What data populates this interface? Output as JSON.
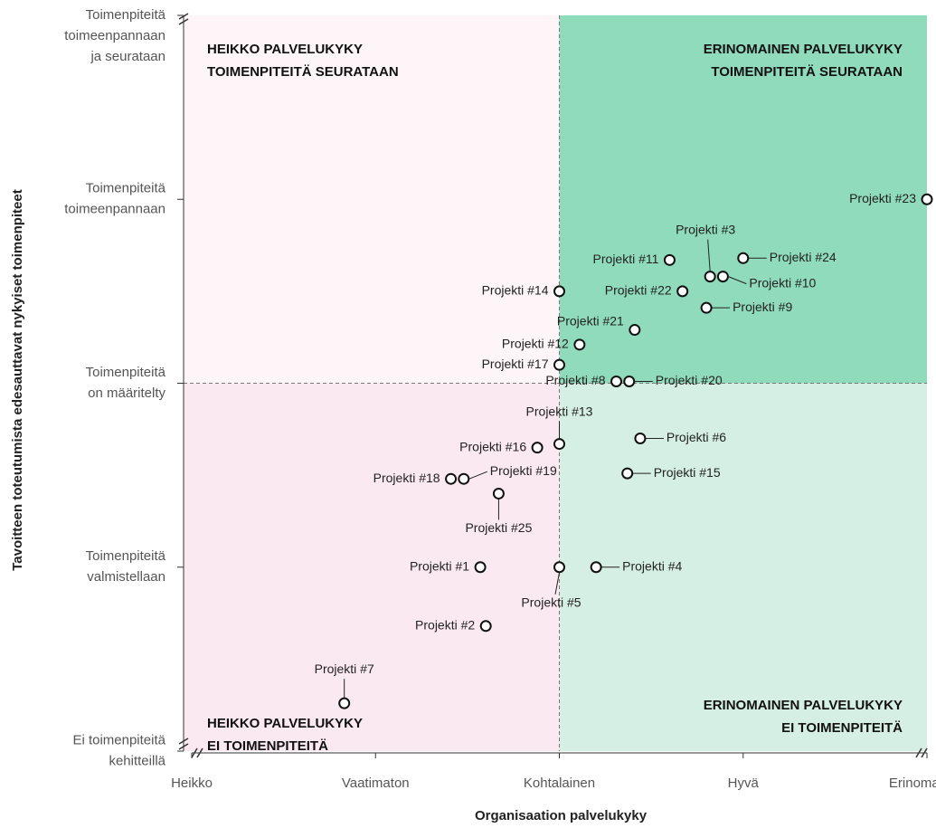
{
  "chart_data": {
    "type": "scatter",
    "x_label": "Organisaation palvelukyky",
    "y_label": "Tavoitteen toteutumista edesauttavat nykyiset toimenpiteet",
    "xlim": [
      0,
      4
    ],
    "ylim": [
      0,
      4
    ],
    "xticks": [
      {
        "value": 0,
        "label": "Heikko"
      },
      {
        "value": 1,
        "label": "Vaatimaton"
      },
      {
        "value": 2,
        "label": "Kohtalainen"
      },
      {
        "value": 3,
        "label": "Hyvä"
      },
      {
        "value": 4,
        "label": "Erinomainen"
      }
    ],
    "yticks": [
      {
        "value": 0,
        "label": [
          "Ei toimenpiteitä",
          "kehitteillä"
        ]
      },
      {
        "value": 1,
        "label": [
          "Toimenpiteitä",
          "valmistellaan"
        ]
      },
      {
        "value": 2,
        "label": [
          "Toimenpiteitä",
          "on määritelty"
        ]
      },
      {
        "value": 3,
        "label": [
          "Toimenpiteitä",
          "toimeenpannaan"
        ]
      },
      {
        "value": 4,
        "label": [
          "Toimenpiteitä",
          "toimeenpannaan",
          "ja seurataan"
        ]
      }
    ],
    "quadrants": {
      "top_left": [
        "HEIKKO PALVELUKYKY",
        "TOIMENPITEITÄ SEURATAAN"
      ],
      "top_right": [
        "ERINOMAINEN PALVELUKYKY",
        "TOIMENPITEITÄ SEURATAAN"
      ],
      "bottom_left": [
        "HEIKKO PALVELUKYKY",
        "EI TOIMENPITEITÄ"
      ],
      "bottom_right": [
        "ERINOMAINEN PALVELUKYKY",
        "EI TOIMENPITEITÄ"
      ]
    },
    "colors": {
      "top_left": "#fdf5f8",
      "bottom_left": "#fbe9f2",
      "top_right": "#8fdbbb",
      "bottom_right": "#d5efe4"
    },
    "points": [
      {
        "name": "Projekti #1",
        "x": 1.57,
        "y": 1.0
      },
      {
        "name": "Projekti #2",
        "x": 1.6,
        "y": 0.68
      },
      {
        "name": "Projekti #3",
        "x": 2.82,
        "y": 2.58
      },
      {
        "name": "Projekti #4",
        "x": 2.2,
        "y": 1.0
      },
      {
        "name": "Projekti #5",
        "x": 2.0,
        "y": 1.0
      },
      {
        "name": "Projekti #6",
        "x": 2.44,
        "y": 1.7
      },
      {
        "name": "Projekti #7",
        "x": 0.83,
        "y": 0.26
      },
      {
        "name": "Projekti #8",
        "x": 2.31,
        "y": 2.01
      },
      {
        "name": "Projekti #9",
        "x": 2.8,
        "y": 2.41
      },
      {
        "name": "Projekti #10",
        "x": 2.89,
        "y": 2.58
      },
      {
        "name": "Projekti #11",
        "x": 2.6,
        "y": 2.67
      },
      {
        "name": "Projekti #12",
        "x": 2.11,
        "y": 2.21
      },
      {
        "name": "Projekti #13",
        "x": 2.0,
        "y": 1.67
      },
      {
        "name": "Projekti #14",
        "x": 2.0,
        "y": 2.5
      },
      {
        "name": "Projekti #15",
        "x": 2.37,
        "y": 1.51
      },
      {
        "name": "Projekti #16",
        "x": 1.88,
        "y": 1.65
      },
      {
        "name": "Projekti #17",
        "x": 2.0,
        "y": 2.1
      },
      {
        "name": "Projekti #18",
        "x": 1.41,
        "y": 1.48
      },
      {
        "name": "Projekti #19",
        "x": 1.48,
        "y": 1.48
      },
      {
        "name": "Projekti #20",
        "x": 2.38,
        "y": 2.01
      },
      {
        "name": "Projekti #21",
        "x": 2.41,
        "y": 2.29
      },
      {
        "name": "Projekti #22",
        "x": 2.67,
        "y": 2.5
      },
      {
        "name": "Projekti #23",
        "x": 4.0,
        "y": 3.0
      },
      {
        "name": "Projekti #24",
        "x": 3.0,
        "y": 2.68
      },
      {
        "name": "Projekti #25",
        "x": 1.67,
        "y": 1.4
      }
    ]
  }
}
